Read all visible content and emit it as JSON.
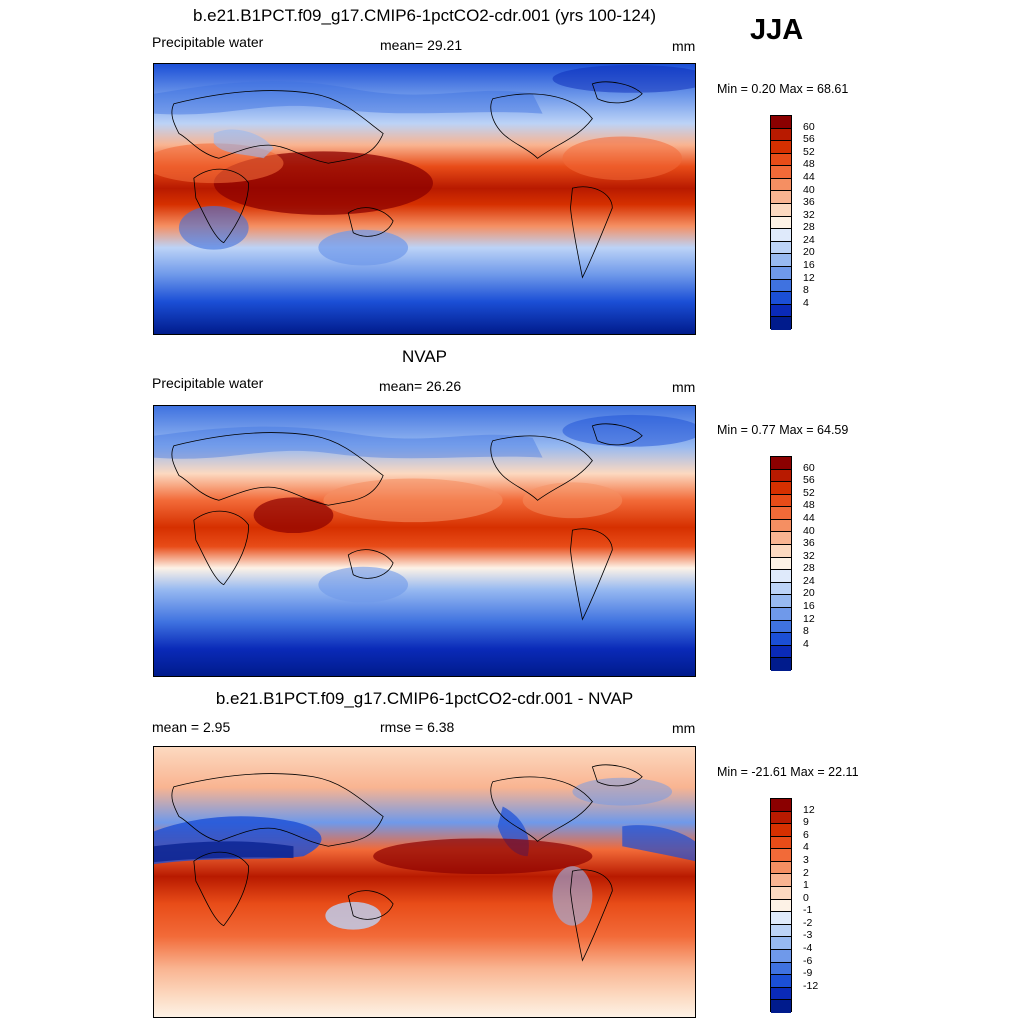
{
  "season": "JJA",
  "panels": [
    {
      "title": "b.e21.B1PCT.f09_g17.CMIP6-1pctCO2-cdr.001 (yrs 100-124)",
      "left": "Precipitable water",
      "center": "mean=  29.21",
      "units": "mm",
      "minmax": "Min =   0.20 Max =  68.61",
      "levels": [
        "60",
        "56",
        "52",
        "48",
        "44",
        "40",
        "36",
        "32",
        "28",
        "24",
        "20",
        "16",
        "12",
        "8",
        "4"
      ],
      "colors": [
        "#8b0000",
        "#b81a00",
        "#d63000",
        "#e84c18",
        "#f26a38",
        "#f58f62",
        "#f9b491",
        "#fcd9c0",
        "#fdf2e6",
        "#dfeafb",
        "#bcd3f7",
        "#97b9f1",
        "#6f99ea",
        "#3f72e0",
        "#1b4fd6",
        "#0a2ab8",
        "#001b8c"
      ]
    },
    {
      "title": "NVAP",
      "left": "Precipitable water",
      "center": "mean=  26.26",
      "units": "mm",
      "minmax": "Min =   0.77 Max =  64.59",
      "levels": [
        "60",
        "56",
        "52",
        "48",
        "44",
        "40",
        "36",
        "32",
        "28",
        "24",
        "20",
        "16",
        "12",
        "8",
        "4"
      ],
      "colors": [
        "#8b0000",
        "#b81a00",
        "#d63000",
        "#e84c18",
        "#f26a38",
        "#f58f62",
        "#f9b491",
        "#fcd9c0",
        "#fdf2e6",
        "#dfeafb",
        "#bcd3f7",
        "#97b9f1",
        "#6f99ea",
        "#3f72e0",
        "#1b4fd6",
        "#0a2ab8",
        "#001b8c"
      ]
    },
    {
      "title": "b.e21.B1PCT.f09_g17.CMIP6-1pctCO2-cdr.001 - NVAP",
      "left": "mean =   2.95",
      "center": "rmse =   6.38",
      "units": "mm",
      "minmax": "Min = -21.61 Max =  22.11",
      "levels": [
        "12",
        "9",
        "6",
        "4",
        "3",
        "2",
        "1",
        "0",
        "-1",
        "-2",
        "-3",
        "-4",
        "-6",
        "-9",
        "-12"
      ],
      "colors": [
        "#8b0000",
        "#b81a00",
        "#d63000",
        "#e84c18",
        "#f26a38",
        "#f58f62",
        "#f9b491",
        "#fcd9c0",
        "#fdf2e6",
        "#dfeafb",
        "#bcd3f7",
        "#97b9f1",
        "#6f99ea",
        "#3f72e0",
        "#1b4fd6",
        "#0a2ab8",
        "#001b8c"
      ]
    }
  ]
}
